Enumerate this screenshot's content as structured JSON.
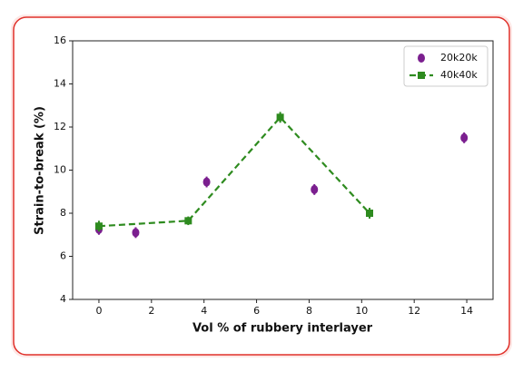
{
  "chart_data": {
    "type": "errorbar",
    "x_label": "Vol % of rubbery interlayer",
    "y_label": "Strain-to-break (%)",
    "xlim": [
      -1,
      15
    ],
    "xticks": [
      0,
      2,
      4,
      6,
      8,
      10,
      12,
      14
    ],
    "ylim": [
      4,
      16
    ],
    "yticks": [
      4,
      6,
      8,
      10,
      12,
      14,
      16
    ],
    "legend": "upper right",
    "series": [
      {
        "name": "20k20k",
        "color": "#7b1f8f",
        "line": false,
        "x": [
          0,
          1.4,
          4.1,
          8.2,
          13.9
        ],
        "values": [
          7.25,
          7.1,
          9.45,
          9.1,
          11.5
        ],
        "errors": [
          0.25,
          0.25,
          0.25,
          0.25,
          0.25
        ]
      },
      {
        "name": "40k40k",
        "color": "#2e8b1f",
        "line": true,
        "x": [
          0,
          3.4,
          6.9,
          10.3
        ],
        "values": [
          7.4,
          7.65,
          12.45,
          8.0
        ],
        "errors": [
          0.25,
          0.2,
          0.25,
          0.25
        ]
      }
    ]
  }
}
